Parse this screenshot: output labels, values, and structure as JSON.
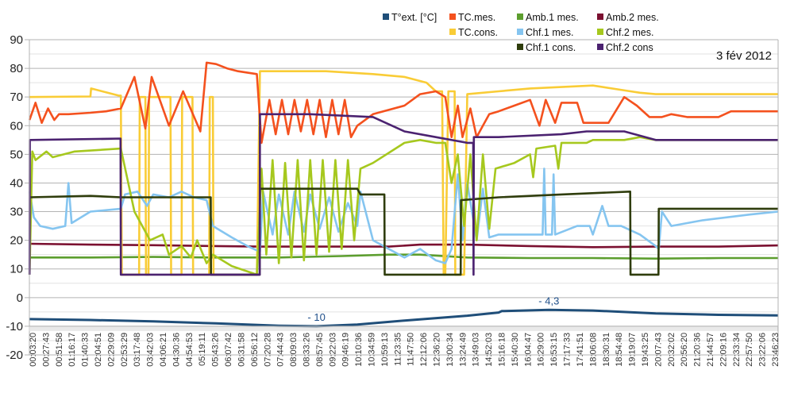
{
  "chart_data": {
    "type": "line",
    "title": "",
    "date_label": "3 fév 2012",
    "xlabel": "",
    "ylabel": "",
    "ylim": [
      -20,
      90
    ],
    "y_ticks": [
      90,
      80,
      70,
      60,
      50,
      40,
      30,
      20,
      10,
      0,
      -10,
      -20
    ],
    "y_tick_labels": [
      "90",
      "80",
      "70",
      "60",
      "50",
      "40",
      "30",
      "20",
      "10",
      "0",
      "-10",
      "-20"
    ],
    "grid": true,
    "minor_grid_step": 5,
    "x_axis_crosses_at": -10,
    "x_unit": "hours",
    "xlim": [
      0.056,
      23.9
    ],
    "x_tick_labels": [
      "00:03:20",
      "00:27:43",
      "00:51:58",
      "01:16:17",
      "01:40:33",
      "02:04:51",
      "02:29:09",
      "02:53:29",
      "03:17:48",
      "03:42:03",
      "04:06:21",
      "04:30:36",
      "04:54:53",
      "05:19:11",
      "05:43:26",
      "06:07:42",
      "06:31:58",
      "06:56:12",
      "07:20:28",
      "07:44:43",
      "08:09:03",
      "08:33:26",
      "08:57:45",
      "09:22:03",
      "09:46:19",
      "10:10:36",
      "10:34:59",
      "10:59:13",
      "11:23:35",
      "11:47:50",
      "12:12:06",
      "12:36:20",
      "13:00:34",
      "13:24:49",
      "13:49:03",
      "14:52:03",
      "15:16:18",
      "15:40:30",
      "16:04:47",
      "16:29:00",
      "16:53:15",
      "17:17:33",
      "17:41:51",
      "18:06:08",
      "18:30:31",
      "18:54:48",
      "19:19:07",
      "19:43:25",
      "20:07:43",
      "20:32:02",
      "20:56:20",
      "21:20:36",
      "21:44:57",
      "22:09:16",
      "22:33:34",
      "22:57:50",
      "23:22:06",
      "23:46:23"
    ],
    "legend_position": "top-center",
    "legend": [
      {
        "name": "T°ext. [°C]",
        "color": "#1f4e79"
      },
      {
        "name": "TC.mes.",
        "color": "#f4511e"
      },
      {
        "name": "Amb.1 mes.",
        "color": "#5c9e2e"
      },
      {
        "name": "Amb.2 mes.",
        "color": "#7b1030"
      },
      {
        "name": "TC.cons.",
        "color": "#f9cc36"
      },
      {
        "name": "Chf.1 mes.",
        "color": "#85c5f0"
      },
      {
        "name": "Chf.2 mes.",
        "color": "#a6c81e"
      },
      {
        "name": "Chf.1 cons.",
        "color": "#2f3d0c"
      },
      {
        "name": "Chf.2 cons",
        "color": "#4b2270"
      }
    ],
    "annotations": [
      {
        "text": "- 10",
        "x": 9.2,
        "y": -10,
        "series": "T°ext. [°C]"
      },
      {
        "text": "- 4,3",
        "x": 16.6,
        "y": -4.3,
        "series": "T°ext. [°C]"
      }
    ],
    "series": [
      {
        "name": "Amb.1 mes.",
        "color": "#5c9e2e",
        "x": [
          0.06,
          2,
          4,
          6,
          8,
          10,
          11.5,
          12.5,
          14,
          16,
          18,
          20,
          22,
          23.9
        ],
        "y": [
          14,
          14,
          14.2,
          14,
          14,
          14.5,
          15,
          15,
          14,
          13.8,
          13.8,
          13.6,
          13.8,
          13.8
        ]
      },
      {
        "name": "Amb.2 mes.",
        "color": "#7b1030",
        "x": [
          0.06,
          2,
          4,
          6,
          7.4,
          10,
          11.5,
          12.5,
          14,
          16,
          18,
          20,
          22,
          23.9
        ],
        "y": [
          18.8,
          18.5,
          18.3,
          18,
          17.8,
          17.8,
          17.8,
          18.5,
          18.5,
          18,
          17.6,
          17.8,
          17.8,
          18.2
        ]
      },
      {
        "name": "T°ext. [°C]",
        "color": "#1f4e79",
        "x": [
          0.06,
          2,
          4,
          6,
          8,
          9.2,
          10.5,
          12,
          14,
          15,
          15.1,
          16.6,
          18,
          20,
          22,
          23.9
        ],
        "y": [
          -7.5,
          -7.8,
          -8.3,
          -9,
          -9.8,
          -10,
          -9.4,
          -8,
          -6.3,
          -5.2,
          -4.7,
          -4.3,
          -4.5,
          -5.5,
          -6,
          -6.2
        ]
      },
      {
        "name": "TC.cons.",
        "color": "#f9cc36",
        "x": [
          0.06,
          2.0,
          2.02,
          2.9,
          2.97,
          3.0,
          3.02,
          3.55,
          3.57,
          3.75,
          3.77,
          3.85,
          3.87,
          4.55,
          4.57,
          4.9,
          4.92,
          5.25,
          5.27,
          5.78,
          5.8,
          5.9,
          5.92,
          7.3,
          7.4,
          9.5,
          11.0,
          12.0,
          12.7,
          13.0,
          13.2,
          13.25,
          13.3,
          13.4,
          13.6,
          13.62,
          13.9,
          14.0,
          15.0,
          16.0,
          17.0,
          18.0,
          19.2,
          19.5,
          20.0,
          21.0,
          22.0,
          23.9
        ],
        "y": [
          70,
          70.2,
          73,
          70.5,
          70.5,
          8,
          8,
          8,
          70,
          70,
          8,
          8,
          70,
          70,
          8,
          8,
          70,
          70,
          8,
          8,
          70,
          70,
          8,
          8,
          79,
          79,
          78,
          77,
          75,
          72,
          72,
          8,
          8,
          72,
          72,
          8,
          8,
          71,
          72,
          73,
          73.5,
          74,
          72,
          71.5,
          71,
          71,
          71,
          71
        ]
      },
      {
        "name": "TC.mes.",
        "color": "#f4511e",
        "x": [
          0.06,
          0.25,
          0.45,
          0.65,
          0.85,
          1.0,
          1.3,
          2.0,
          2.5,
          2.97,
          3.4,
          3.75,
          3.95,
          4.5,
          4.95,
          5.5,
          5.7,
          6.0,
          6.35,
          6.7,
          7.3,
          7.45,
          7.7,
          7.9,
          8.1,
          8.3,
          8.5,
          8.7,
          8.9,
          9.1,
          9.3,
          9.5,
          9.7,
          9.9,
          10.1,
          10.3,
          10.5,
          11.0,
          12.0,
          12.5,
          13.0,
          13.3,
          13.5,
          13.7,
          13.85,
          14.1,
          14.3,
          14.5,
          14.7,
          15.0,
          15.5,
          16.0,
          16.3,
          16.5,
          16.8,
          17.0,
          17.5,
          17.7,
          17.85,
          18.5,
          19.0,
          19.4,
          19.8,
          20.2,
          20.5,
          21.0,
          22.0,
          22.4,
          23.9
        ],
        "y": [
          62,
          68,
          61,
          66,
          62,
          64,
          64,
          64.5,
          65,
          66,
          77,
          59,
          77,
          60,
          72,
          58,
          82,
          81.5,
          80,
          79,
          78,
          54,
          69,
          57,
          69,
          57,
          69,
          58,
          69,
          57,
          69,
          56,
          69,
          57,
          69,
          56,
          60,
          64,
          67,
          71,
          72,
          70,
          56,
          67,
          56,
          66,
          56,
          60,
          64,
          65,
          67,
          69,
          60,
          69,
          61,
          68,
          68,
          61,
          61,
          61,
          70,
          67,
          63,
          63,
          64,
          63,
          63,
          65,
          65
        ]
      },
      {
        "name": "Chf.1 mes.",
        "color": "#85c5f0",
        "x": [
          0.06,
          0.2,
          0.4,
          0.8,
          1.2,
          1.3,
          1.4,
          2.0,
          2.97,
          3.1,
          3.5,
          3.8,
          4.0,
          4.5,
          4.9,
          5.3,
          5.7,
          5.9,
          6.5,
          7.0,
          7.4,
          7.5,
          7.8,
          8.0,
          8.3,
          8.5,
          8.8,
          9.0,
          9.3,
          9.6,
          9.9,
          10.2,
          10.5,
          10.6,
          11.0,
          12.0,
          12.5,
          13.0,
          13.3,
          13.5,
          13.7,
          13.85,
          14.0,
          14.3,
          14.5,
          14.7,
          15.0,
          15.5,
          16.0,
          16.4,
          16.45,
          16.5,
          16.7,
          16.75,
          16.8,
          17.5,
          17.9,
          18.0,
          18.3,
          18.5,
          18.9,
          19.5,
          20.0,
          20.1,
          20.2,
          20.5,
          21.5,
          23.0,
          23.9
        ],
        "y": [
          37,
          28,
          25,
          24,
          25,
          40,
          26,
          30,
          31,
          36,
          37,
          32,
          36,
          35,
          37,
          35,
          34,
          25,
          21,
          18,
          16,
          37,
          22,
          36,
          22,
          37,
          23,
          36,
          24,
          35,
          23,
          33,
          25,
          37,
          20,
          14,
          17,
          13,
          12,
          17,
          43,
          20,
          40,
          20,
          38,
          21,
          22,
          22,
          22,
          22,
          45,
          22,
          22,
          43,
          22,
          25,
          25,
          22,
          32,
          25,
          25,
          22,
          18,
          17,
          30,
          25,
          27,
          29,
          30
        ]
      },
      {
        "name": "Chf.2 mes.",
        "color": "#a6c81e",
        "x": [
          0.06,
          0.15,
          0.25,
          0.6,
          0.8,
          1.5,
          2.97,
          3.4,
          3.9,
          4.3,
          4.5,
          4.9,
          5.2,
          5.4,
          5.7,
          5.9,
          6.5,
          7.3,
          7.45,
          7.6,
          7.8,
          8.0,
          8.2,
          8.4,
          8.6,
          8.8,
          9.0,
          9.2,
          9.4,
          9.6,
          9.8,
          10.0,
          10.2,
          10.4,
          10.6,
          11.0,
          12.0,
          12.5,
          13.0,
          13.3,
          13.5,
          13.7,
          13.9,
          14.1,
          14.3,
          14.5,
          14.7,
          14.9,
          15.5,
          16.0,
          16.1,
          16.2,
          16.8,
          16.9,
          17.0,
          17.8,
          18.0,
          19.0,
          19.5,
          20.0,
          21.0,
          22.0,
          23.9
        ],
        "y": [
          8,
          51,
          48,
          51,
          49,
          51,
          52,
          30,
          20,
          22,
          15,
          18,
          14,
          20,
          12,
          15,
          11,
          8,
          45,
          15,
          48,
          12,
          47,
          14,
          48,
          13,
          48,
          15,
          48,
          16,
          48,
          17,
          48,
          20,
          45,
          47,
          54,
          55,
          54,
          54,
          40,
          50,
          25,
          50,
          20,
          50,
          24,
          45,
          47,
          50,
          42,
          52,
          53,
          45,
          54,
          54,
          55,
          55,
          56,
          55,
          55,
          55,
          55
        ]
      },
      {
        "name": "Chf.1 cons.",
        "color": "#2f3d0c",
        "x": [
          0.06,
          2.0,
          2.97,
          5.83,
          5.84,
          7.39,
          7.4,
          10.5,
          10.6,
          11.36,
          11.37,
          13.79,
          13.8,
          15.0,
          17.0,
          19.19,
          19.2,
          20.09,
          20.1,
          23.9
        ],
        "y": [
          35,
          35.5,
          35,
          35,
          8,
          8,
          38,
          38,
          36,
          36,
          8,
          8,
          34,
          35,
          36,
          37,
          8,
          8,
          31,
          31
        ]
      },
      {
        "name": "Chf.2 cons",
        "color": "#4b2270",
        "x": [
          0.06,
          0.07,
          2.96,
          2.97,
          7.39,
          7.4,
          9.0,
          11.0,
          12.0,
          13.0,
          14.0,
          14.19,
          14.2,
          14.21,
          15.0,
          17.0,
          17.8,
          19.0,
          20.0,
          23.9
        ],
        "y": [
          8,
          55,
          55.5,
          8,
          8,
          64,
          64,
          63,
          58,
          56,
          54,
          54,
          8,
          56,
          56,
          57,
          58,
          58,
          55,
          55
        ]
      }
    ]
  }
}
